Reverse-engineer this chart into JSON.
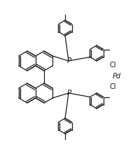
{
  "bg_color": "#ffffff",
  "line_color": "#1a1a1a",
  "line_width": 0.9,
  "fig_width": 2.01,
  "fig_height": 2.2,
  "dpi": 100,
  "Pd_label": "Pd",
  "Cl_label1": "Cl",
  "Cl_label2": "Cl",
  "font_size": 7.0,
  "font_size_P": 7.5
}
